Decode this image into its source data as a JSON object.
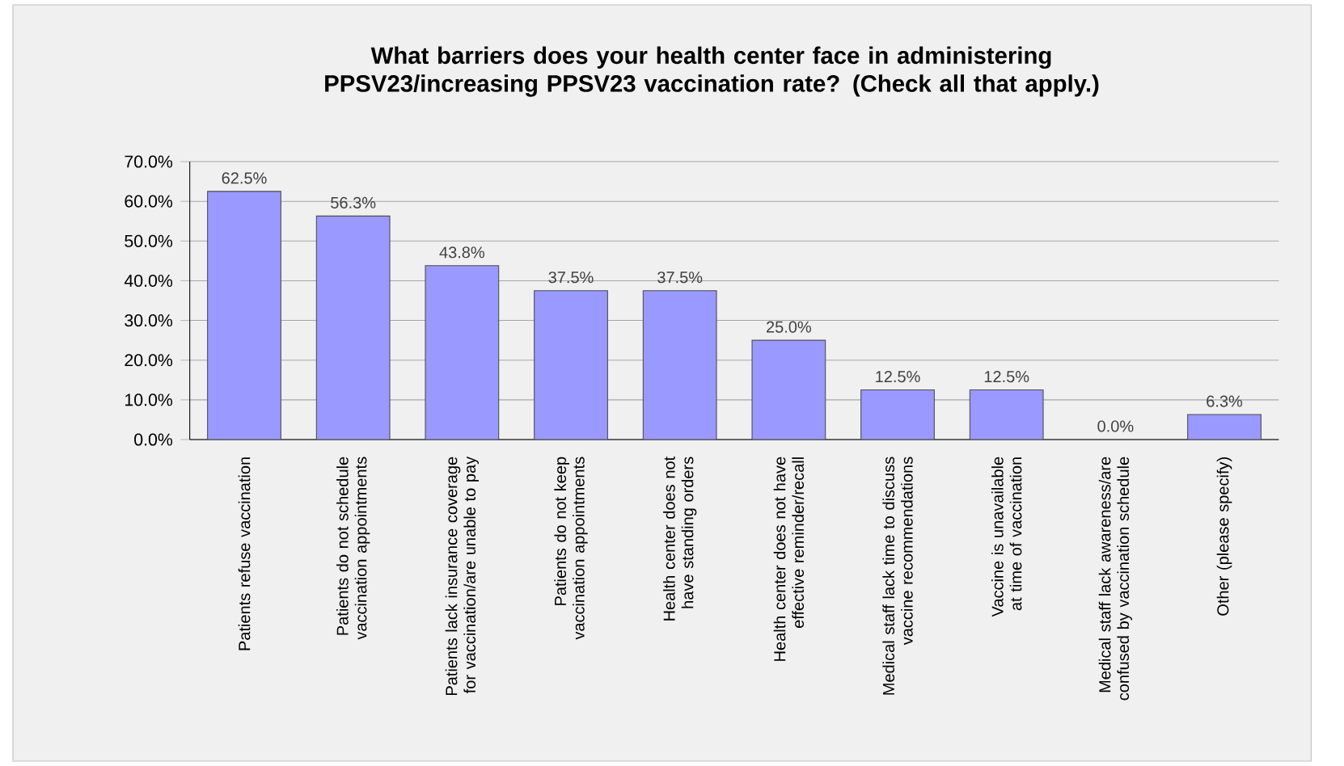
{
  "chart_data": {
    "type": "bar",
    "title": "What barriers does your health center face in administering PPSV23/increasing PPSV23 vaccination rate? (Check all that apply.)",
    "categories": [
      "Patients refuse vaccination",
      "Patients do not schedule vaccination appointments",
      "Patients lack insurance coverage for vaccination/are unable to pay",
      "Patients do not keep vaccination appointments",
      "Health center does not have standing orders",
      "Health center does not have effective reminder/recall",
      "Medical staff lack time to discuss vaccine recommendations",
      "Vaccine is unavailable at time of vaccination",
      "Medical staff lack awareness/are confused by vaccination schedule",
      "Other (please specify)"
    ],
    "values": [
      62.5,
      56.3,
      43.8,
      37.5,
      37.5,
      25.0,
      12.5,
      12.5,
      0.0,
      6.3
    ],
    "value_labels": [
      "62.5%",
      "56.3%",
      "43.8%",
      "37.5%",
      "37.5%",
      "25.0%",
      "12.5%",
      "12.5%",
      "0.0%",
      "6.3%"
    ],
    "color": "#9999ff",
    "ylim": [
      0,
      70
    ],
    "yticks": [
      {
        "value": 0,
        "label": "0.0%"
      },
      {
        "value": 10,
        "label": "10.0%"
      },
      {
        "value": 20,
        "label": "20.0%"
      },
      {
        "value": 30,
        "label": "30.0%"
      },
      {
        "value": 40,
        "label": "40.0%"
      },
      {
        "value": 50,
        "label": "50.0%"
      },
      {
        "value": 60,
        "label": "60.0%"
      },
      {
        "value": 70,
        "label": "70.0%"
      }
    ],
    "grid": "y"
  }
}
